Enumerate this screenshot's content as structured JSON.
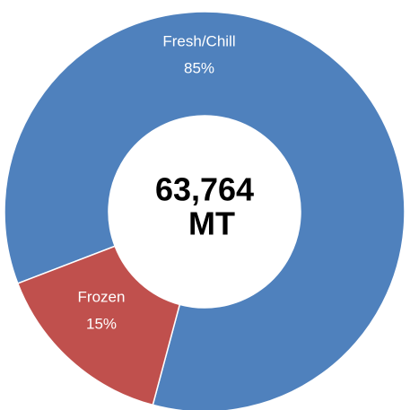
{
  "chart_data": {
    "type": "donut",
    "categories": [
      "Fresh/Chill",
      "Frozen"
    ],
    "values": [
      85,
      15
    ],
    "value_labels": [
      "85%",
      "15%"
    ],
    "colors": [
      "#4f81bd",
      "#c0504d"
    ],
    "center_label": [
      "63,764",
      "MT"
    ]
  }
}
